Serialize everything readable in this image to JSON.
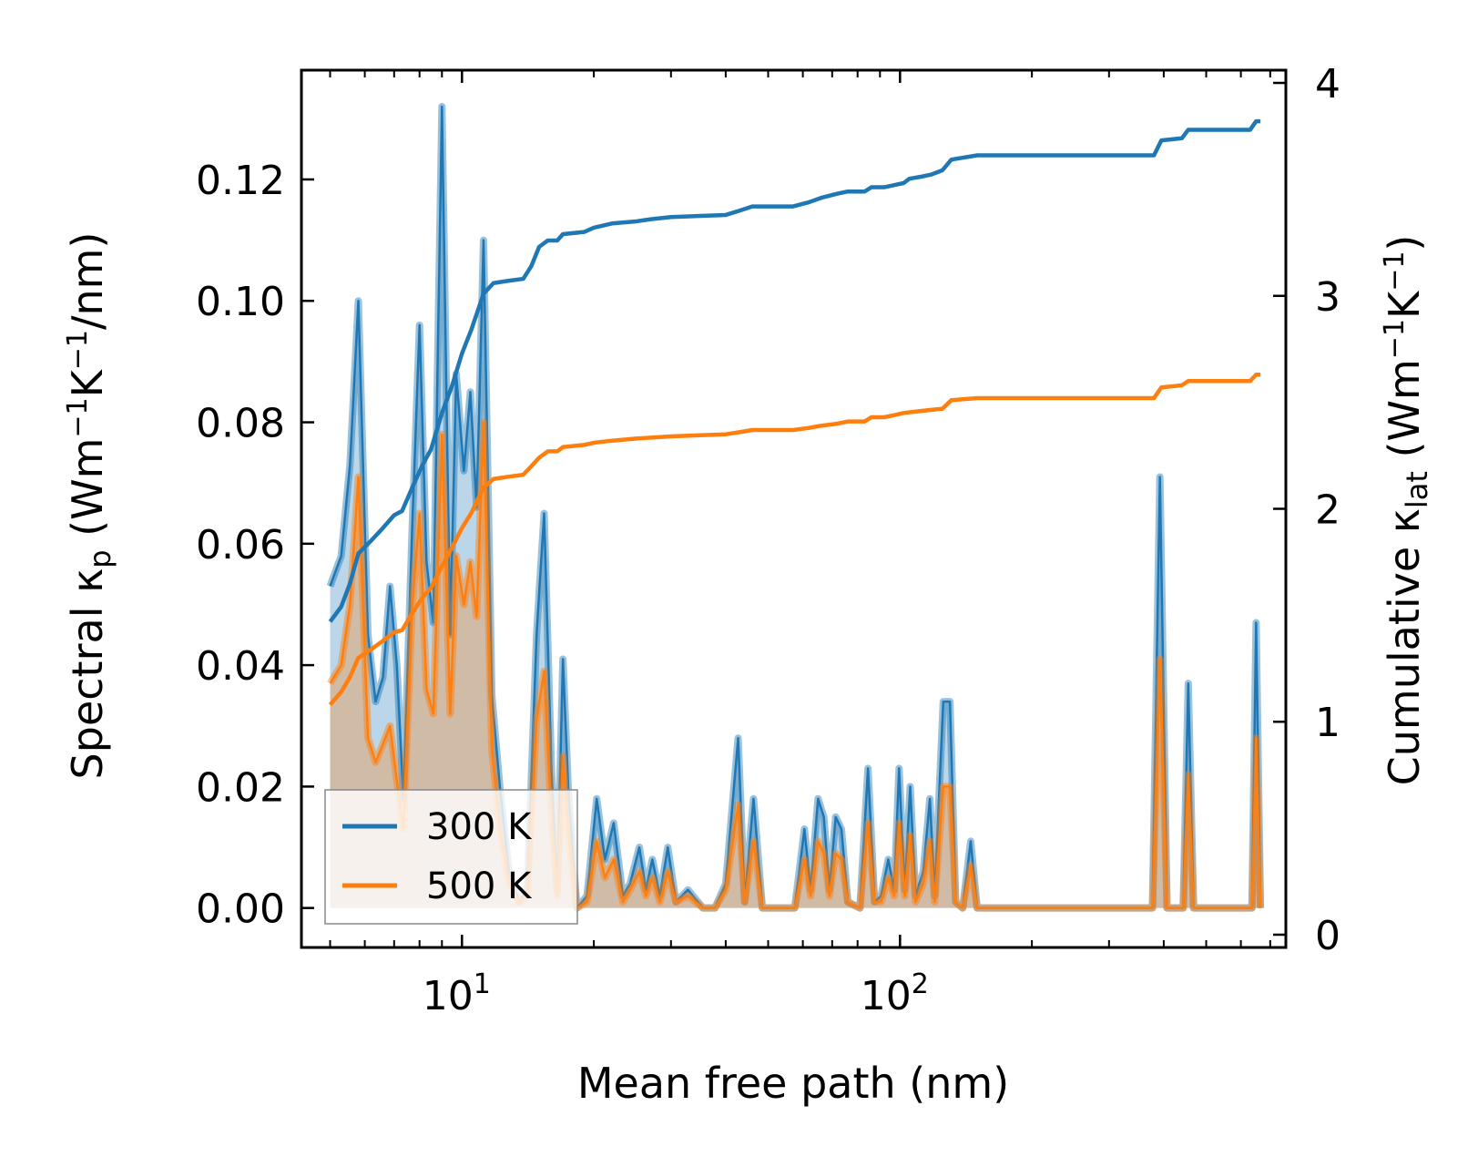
{
  "chart_data": {
    "type": "line",
    "title": "",
    "xlabel": "Mean free path (nm)",
    "ylabel_left": {
      "main": "Spectral κ",
      "sub": "p",
      "unit_open": " (Wm",
      "sup1": "−1",
      "unit_mid": "K",
      "sup2": "−1",
      "unit_close": "/nm)"
    },
    "ylabel_right": {
      "main": "Cumulative κ",
      "sub": "lat",
      "unit_open": " (Wm",
      "sup1": "−1",
      "unit_mid": "K",
      "sup2": "−1",
      "unit_close": ")"
    },
    "x_scale": "log",
    "xlim": [
      4.3,
      760
    ],
    "ylim_left": [
      -0.0065,
      0.138
    ],
    "ylim_right": [
      -0.06,
      4.06
    ],
    "x_ticks": [
      {
        "value": 10,
        "base": "10",
        "exp": "1"
      },
      {
        "value": 100,
        "base": "10",
        "exp": "2"
      }
    ],
    "y_ticks_left": [
      {
        "value": 0.0,
        "label": "0.00"
      },
      {
        "value": 0.02,
        "label": "0.02"
      },
      {
        "value": 0.04,
        "label": "0.04"
      },
      {
        "value": 0.06,
        "label": "0.06"
      },
      {
        "value": 0.08,
        "label": "0.08"
      },
      {
        "value": 0.1,
        "label": "0.10"
      },
      {
        "value": 0.12,
        "label": "0.12"
      }
    ],
    "y_ticks_right": [
      {
        "value": 0,
        "label": "0"
      },
      {
        "value": 1,
        "label": "1"
      },
      {
        "value": 2,
        "label": "2"
      },
      {
        "value": 3,
        "label": "3"
      },
      {
        "value": 4,
        "label": "4"
      }
    ],
    "legend": {
      "location": "lower-left",
      "entries": [
        {
          "label": "300 K",
          "color": "#1f77b4"
        },
        {
          "label": "500 K",
          "color": "#ff7f0e"
        }
      ]
    },
    "spectral_series": [
      {
        "name": "300 K",
        "color": "#1f77b4",
        "points": [
          [
            5.0,
            0.053
          ],
          [
            5.3,
            0.058
          ],
          [
            5.55,
            0.073
          ],
          [
            5.8,
            0.1
          ],
          [
            6.1,
            0.045
          ],
          [
            6.35,
            0.034
          ],
          [
            6.6,
            0.038
          ],
          [
            6.85,
            0.053
          ],
          [
            7.1,
            0.04
          ],
          [
            7.35,
            0.018
          ],
          [
            7.7,
            0.063
          ],
          [
            8.0,
            0.096
          ],
          [
            8.3,
            0.057
          ],
          [
            8.6,
            0.047
          ],
          [
            9.0,
            0.132
          ],
          [
            9.4,
            0.045
          ],
          [
            9.7,
            0.088
          ],
          [
            10.1,
            0.072
          ],
          [
            10.45,
            0.085
          ],
          [
            10.8,
            0.066
          ],
          [
            11.2,
            0.11
          ],
          [
            11.7,
            0.035
          ],
          [
            12.2,
            0.02
          ],
          [
            12.8,
            0.006
          ],
          [
            13.5,
            0.001
          ],
          [
            14.1,
            0.003
          ],
          [
            14.8,
            0.045
          ],
          [
            15.4,
            0.065
          ],
          [
            16.0,
            0.023
          ],
          [
            16.5,
            0.003
          ],
          [
            17.0,
            0.041
          ],
          [
            17.5,
            0.019
          ],
          [
            18.3,
            0.0
          ],
          [
            19.3,
            0.002
          ],
          [
            20.3,
            0.018
          ],
          [
            21.2,
            0.008
          ],
          [
            22.2,
            0.014
          ],
          [
            23.3,
            0.002
          ],
          [
            24.2,
            0.004
          ],
          [
            25.4,
            0.01
          ],
          [
            26.3,
            0.003
          ],
          [
            27.2,
            0.008
          ],
          [
            28.3,
            0.002
          ],
          [
            29.5,
            0.01
          ],
          [
            30.8,
            0.001
          ],
          [
            32.8,
            0.003
          ],
          [
            35.5,
            0.0
          ],
          [
            37.8,
            0.0
          ],
          [
            40.0,
            0.004
          ],
          [
            42.7,
            0.028
          ],
          [
            44.2,
            0.001
          ],
          [
            46.3,
            0.018
          ],
          [
            48.5,
            0.0
          ],
          [
            57.5,
            0.0
          ],
          [
            60.5,
            0.013
          ],
          [
            62.5,
            0.003
          ],
          [
            65.0,
            0.018
          ],
          [
            67.0,
            0.015
          ],
          [
            69.0,
            0.003
          ],
          [
            71.3,
            0.015
          ],
          [
            73.5,
            0.013
          ],
          [
            76.0,
            0.001
          ],
          [
            81.0,
            0.0
          ],
          [
            84.5,
            0.023
          ],
          [
            87.5,
            0.001
          ],
          [
            90.5,
            0.002
          ],
          [
            94.0,
            0.008
          ],
          [
            97.0,
            0.003
          ],
          [
            99.5,
            0.023
          ],
          [
            102.5,
            0.003
          ],
          [
            105.5,
            0.02
          ],
          [
            108.5,
            0.002
          ],
          [
            113.0,
            0.006
          ],
          [
            117.0,
            0.018
          ],
          [
            120.0,
            0.002
          ],
          [
            125.5,
            0.034
          ],
          [
            130.0,
            0.034
          ],
          [
            134.0,
            0.001
          ],
          [
            139.0,
            0.0
          ],
          [
            145.0,
            0.011
          ],
          [
            150.0,
            0.0
          ],
          [
            377.0,
            0.0
          ],
          [
            392.0,
            0.071
          ],
          [
            407.0,
            0.0
          ],
          [
            443.0,
            0.0
          ],
          [
            455.0,
            0.037
          ],
          [
            468.0,
            0.0
          ],
          [
            636.0,
            0.0
          ],
          [
            650.0,
            0.047
          ],
          [
            665.0,
            0.0
          ]
        ]
      },
      {
        "name": "500 K",
        "color": "#ff7f0e",
        "points": [
          [
            5.0,
            0.037
          ],
          [
            5.3,
            0.04
          ],
          [
            5.55,
            0.05
          ],
          [
            5.8,
            0.071
          ],
          [
            6.1,
            0.028
          ],
          [
            6.35,
            0.024
          ],
          [
            6.6,
            0.027
          ],
          [
            6.85,
            0.03
          ],
          [
            7.1,
            0.021
          ],
          [
            7.35,
            0.013
          ],
          [
            7.7,
            0.05
          ],
          [
            8.0,
            0.065
          ],
          [
            8.3,
            0.036
          ],
          [
            8.6,
            0.032
          ],
          [
            9.0,
            0.078
          ],
          [
            9.4,
            0.032
          ],
          [
            9.7,
            0.058
          ],
          [
            10.1,
            0.05
          ],
          [
            10.45,
            0.057
          ],
          [
            10.8,
            0.048
          ],
          [
            11.2,
            0.08
          ],
          [
            11.7,
            0.026
          ],
          [
            12.2,
            0.013
          ],
          [
            12.8,
            0.004
          ],
          [
            13.5,
            0.001
          ],
          [
            14.1,
            0.002
          ],
          [
            14.8,
            0.031
          ],
          [
            15.4,
            0.039
          ],
          [
            16.0,
            0.015
          ],
          [
            16.5,
            0.002
          ],
          [
            17.0,
            0.025
          ],
          [
            17.5,
            0.012
          ],
          [
            18.3,
            0.0
          ],
          [
            19.3,
            0.001
          ],
          [
            20.3,
            0.011
          ],
          [
            21.2,
            0.005
          ],
          [
            22.2,
            0.008
          ],
          [
            23.3,
            0.001
          ],
          [
            24.2,
            0.003
          ],
          [
            25.4,
            0.006
          ],
          [
            26.3,
            0.002
          ],
          [
            27.2,
            0.005
          ],
          [
            28.3,
            0.001
          ],
          [
            29.5,
            0.006
          ],
          [
            30.8,
            0.001
          ],
          [
            32.8,
            0.002
          ],
          [
            35.5,
            0.0
          ],
          [
            37.8,
            0.0
          ],
          [
            40.0,
            0.003
          ],
          [
            42.7,
            0.017
          ],
          [
            44.2,
            0.001
          ],
          [
            46.3,
            0.011
          ],
          [
            48.5,
            0.0
          ],
          [
            57.5,
            0.0
          ],
          [
            60.5,
            0.008
          ],
          [
            62.5,
            0.002
          ],
          [
            65.0,
            0.011
          ],
          [
            67.0,
            0.009
          ],
          [
            69.0,
            0.002
          ],
          [
            71.3,
            0.009
          ],
          [
            73.5,
            0.008
          ],
          [
            76.0,
            0.001
          ],
          [
            81.0,
            0.0
          ],
          [
            84.5,
            0.014
          ],
          [
            87.5,
            0.001
          ],
          [
            90.5,
            0.001
          ],
          [
            94.0,
            0.005
          ],
          [
            97.0,
            0.002
          ],
          [
            99.5,
            0.014
          ],
          [
            102.5,
            0.002
          ],
          [
            105.5,
            0.012
          ],
          [
            108.5,
            0.001
          ],
          [
            113.0,
            0.004
          ],
          [
            117.0,
            0.011
          ],
          [
            120.0,
            0.001
          ],
          [
            125.5,
            0.02
          ],
          [
            130.0,
            0.02
          ],
          [
            134.0,
            0.001
          ],
          [
            139.0,
            0.0
          ],
          [
            145.0,
            0.007
          ],
          [
            150.0,
            0.0
          ],
          [
            377.0,
            0.0
          ],
          [
            392.0,
            0.041
          ],
          [
            407.0,
            0.0
          ],
          [
            443.0,
            0.0
          ],
          [
            455.0,
            0.022
          ],
          [
            468.0,
            0.0
          ],
          [
            636.0,
            0.0
          ],
          [
            650.0,
            0.028
          ],
          [
            665.0,
            0.0
          ]
        ]
      }
    ],
    "cumulative_series": [
      {
        "name": "300 K",
        "color": "#1f77b4",
        "points": [
          [
            5.0,
            1.47
          ],
          [
            5.3,
            1.54
          ],
          [
            5.55,
            1.65
          ],
          [
            5.8,
            1.79
          ],
          [
            6.2,
            1.85
          ],
          [
            6.6,
            1.91
          ],
          [
            7.0,
            1.97
          ],
          [
            7.3,
            1.99
          ],
          [
            7.7,
            2.1
          ],
          [
            8.1,
            2.2
          ],
          [
            8.5,
            2.28
          ],
          [
            9.0,
            2.45
          ],
          [
            9.5,
            2.58
          ],
          [
            10.0,
            2.73
          ],
          [
            10.5,
            2.84
          ],
          [
            11.2,
            3.01
          ],
          [
            11.8,
            3.06
          ],
          [
            12.7,
            3.07
          ],
          [
            13.8,
            3.08
          ],
          [
            14.4,
            3.14
          ],
          [
            15.0,
            3.23
          ],
          [
            15.7,
            3.26
          ],
          [
            16.5,
            3.26
          ],
          [
            17.0,
            3.29
          ],
          [
            19.0,
            3.3
          ],
          [
            20.0,
            3.32
          ],
          [
            22.0,
            3.34
          ],
          [
            25.0,
            3.35
          ],
          [
            27.0,
            3.36
          ],
          [
            30.0,
            3.37
          ],
          [
            40.0,
            3.38
          ],
          [
            43.0,
            3.4
          ],
          [
            46.0,
            3.42
          ],
          [
            57.0,
            3.42
          ],
          [
            62.0,
            3.44
          ],
          [
            66.0,
            3.46
          ],
          [
            72.0,
            3.48
          ],
          [
            76.0,
            3.49
          ],
          [
            83.0,
            3.49
          ],
          [
            86.0,
            3.51
          ],
          [
            92.0,
            3.51
          ],
          [
            97.0,
            3.52
          ],
          [
            102.0,
            3.53
          ],
          [
            105.0,
            3.55
          ],
          [
            112.0,
            3.56
          ],
          [
            118.0,
            3.57
          ],
          [
            125.0,
            3.59
          ],
          [
            131.0,
            3.64
          ],
          [
            150.0,
            3.66
          ],
          [
            380.0,
            3.66
          ],
          [
            395.0,
            3.73
          ],
          [
            440.0,
            3.74
          ],
          [
            455.0,
            3.78
          ],
          [
            630.0,
            3.78
          ],
          [
            650.0,
            3.82
          ],
          [
            665.0,
            3.82
          ]
        ]
      },
      {
        "name": "500 K",
        "color": "#ff7f0e",
        "points": [
          [
            5.0,
            1.08
          ],
          [
            5.3,
            1.14
          ],
          [
            5.55,
            1.21
          ],
          [
            5.8,
            1.3
          ],
          [
            6.2,
            1.34
          ],
          [
            6.6,
            1.38
          ],
          [
            7.0,
            1.42
          ],
          [
            7.3,
            1.43
          ],
          [
            7.7,
            1.51
          ],
          [
            8.1,
            1.58
          ],
          [
            8.5,
            1.63
          ],
          [
            9.0,
            1.73
          ],
          [
            9.5,
            1.82
          ],
          [
            10.0,
            1.91
          ],
          [
            10.5,
            1.98
          ],
          [
            11.2,
            2.1
          ],
          [
            11.8,
            2.14
          ],
          [
            12.7,
            2.15
          ],
          [
            13.8,
            2.16
          ],
          [
            14.4,
            2.2
          ],
          [
            15.0,
            2.24
          ],
          [
            15.7,
            2.27
          ],
          [
            16.5,
            2.27
          ],
          [
            17.0,
            2.29
          ],
          [
            19.0,
            2.3
          ],
          [
            20.0,
            2.31
          ],
          [
            22.0,
            2.32
          ],
          [
            25.0,
            2.33
          ],
          [
            30.0,
            2.34
          ],
          [
            40.0,
            2.35
          ],
          [
            43.0,
            2.36
          ],
          [
            46.0,
            2.37
          ],
          [
            57.0,
            2.37
          ],
          [
            62.0,
            2.38
          ],
          [
            66.0,
            2.39
          ],
          [
            72.0,
            2.4
          ],
          [
            76.0,
            2.41
          ],
          [
            83.0,
            2.41
          ],
          [
            86.0,
            2.43
          ],
          [
            92.0,
            2.43
          ],
          [
            97.0,
            2.44
          ],
          [
            102.0,
            2.45
          ],
          [
            112.0,
            2.46
          ],
          [
            125.0,
            2.47
          ],
          [
            131.0,
            2.51
          ],
          [
            150.0,
            2.52
          ],
          [
            380.0,
            2.52
          ],
          [
            395.0,
            2.57
          ],
          [
            440.0,
            2.58
          ],
          [
            455.0,
            2.6
          ],
          [
            630.0,
            2.6
          ],
          [
            650.0,
            2.63
          ],
          [
            665.0,
            2.63
          ]
        ]
      }
    ]
  }
}
